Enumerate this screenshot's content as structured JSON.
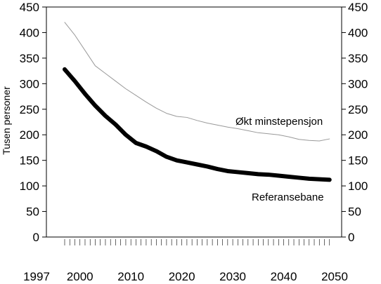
{
  "chart_data": {
    "type": "line",
    "title": "",
    "xlabel": "",
    "ylabel": "Tusen personer",
    "xlim": [
      1997,
      2050
    ],
    "ylim": [
      0,
      450
    ],
    "y_ticks": [
      0,
      50,
      100,
      150,
      200,
      250,
      300,
      350,
      400,
      450
    ],
    "x_tick_labels": [
      "1997",
      "2000",
      "2010",
      "2020",
      "2030",
      "2040",
      "2050"
    ],
    "right_axis_ticks": true,
    "grid": false,
    "series": [
      {
        "name": "Økt minstepensjon",
        "color": "#999999",
        "style": "thin",
        "x": [
          1997,
          1999,
          2001,
          2003,
          2005,
          2007,
          2009,
          2011,
          2013,
          2015,
          2017,
          2019,
          2021,
          2023,
          2025,
          2027,
          2029,
          2031,
          2033,
          2035,
          2037,
          2039,
          2041,
          2043,
          2045,
          2047,
          2049
        ],
        "values": [
          420,
          395,
          365,
          335,
          320,
          305,
          290,
          277,
          264,
          252,
          242,
          236,
          234,
          228,
          223,
          219,
          215,
          212,
          208,
          204,
          202,
          200,
          196,
          191,
          189,
          188,
          192
        ]
      },
      {
        "name": "Referansebane",
        "color": "#000000",
        "style": "thick",
        "x": [
          1997,
          1999,
          2001,
          2003,
          2005,
          2007,
          2009,
          2011,
          2013,
          2015,
          2017,
          2019,
          2021,
          2023,
          2025,
          2027,
          2029,
          2031,
          2033,
          2035,
          2037,
          2039,
          2041,
          2043,
          2045,
          2047,
          2049
        ],
        "values": [
          328,
          305,
          280,
          257,
          237,
          220,
          200,
          184,
          177,
          168,
          157,
          150,
          146,
          142,
          138,
          133,
          129,
          127,
          125,
          123,
          122,
          120,
          118,
          116,
          114,
          113,
          112
        ]
      }
    ]
  }
}
